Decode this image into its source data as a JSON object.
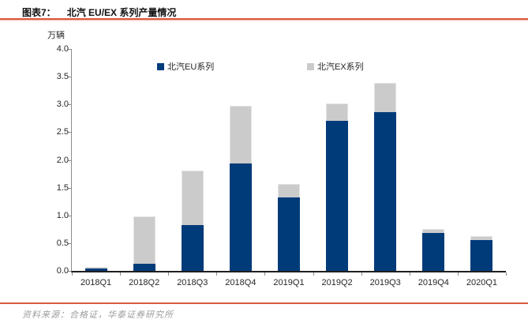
{
  "header": {
    "label": "图表7：",
    "title": "北汽 EU/EX 系列产量情况"
  },
  "chart_data": {
    "type": "bar",
    "stacked": true,
    "title": "北汽 EU/EX 系列产量情况",
    "unit_label": "万辆",
    "categories": [
      "2018Q1",
      "2018Q2",
      "2018Q3",
      "2018Q4",
      "2019Q1",
      "2019Q2",
      "2019Q3",
      "2019Q4",
      "2020Q1"
    ],
    "series": [
      {
        "name": "北汽EU系列",
        "color": "#003b79",
        "values": [
          0.04,
          0.13,
          0.82,
          1.94,
          1.32,
          2.71,
          2.86,
          0.68,
          0.55
        ]
      },
      {
        "name": "北汽EX系列",
        "color": "#cbcbcb",
        "values": [
          0.03,
          0.85,
          0.99,
          1.04,
          0.24,
          0.31,
          0.53,
          0.07,
          0.08
        ]
      }
    ],
    "ylim": [
      0,
      4
    ],
    "ytick_step": 0.5,
    "ytick_labels": [
      "0.0",
      "0.5",
      "1.0",
      "1.5",
      "2.0",
      "2.5",
      "3.0",
      "3.5",
      "4.0"
    ],
    "grid": false,
    "legend_position": "top-inside"
  },
  "footer": {
    "source": "资料来源：合格证，华泰证券研究所"
  },
  "colors": {
    "accent_line": "#d95b41",
    "bar_blue": "#003b79",
    "bar_gray": "#cbcbcb",
    "axis": "#8c8c8c",
    "footer_text": "#9c9c9c"
  }
}
